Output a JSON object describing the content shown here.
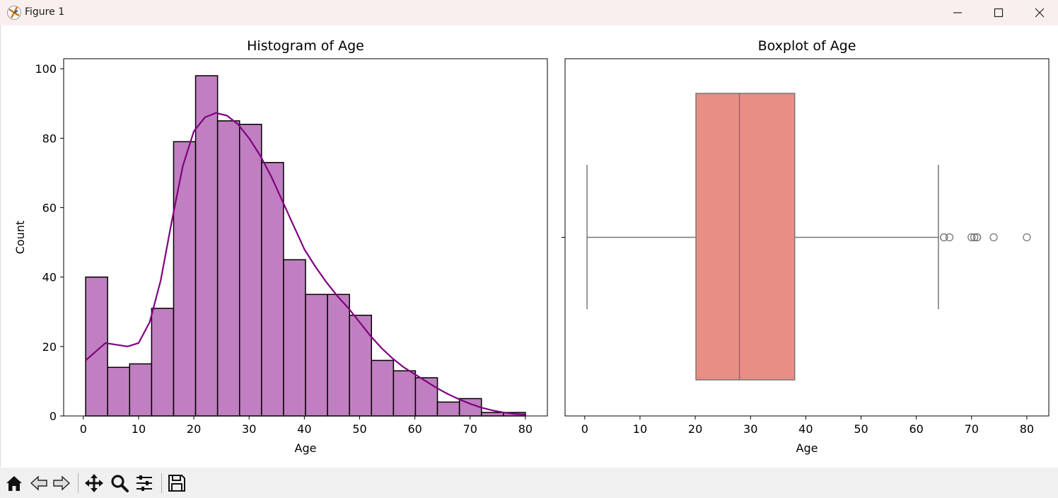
{
  "window": {
    "title": "Figure 1"
  },
  "toolbar": {
    "icons": [
      "home-icon",
      "back-icon",
      "forward-icon",
      "pan-icon",
      "zoom-icon",
      "configure-icon",
      "save-icon"
    ]
  },
  "colors": {
    "hist_fill": "#c07fc0",
    "hist_edge": "#000000",
    "kde_line": "#800080",
    "box_fill": "#e88e84",
    "box_edge": "#777777"
  },
  "chart_data": [
    {
      "type": "bar",
      "title": "Histogram of Age",
      "xlabel": "Age",
      "ylabel": "Count",
      "bin_edges": [
        0.42,
        4.399,
        8.378,
        12.357,
        16.336,
        20.315,
        24.294,
        28.273,
        32.252,
        36.231,
        40.21,
        44.189,
        48.168,
        52.147,
        56.126,
        60.105,
        64.084,
        68.063,
        72.042,
        76.021,
        80.0
      ],
      "counts": [
        40,
        14,
        15,
        31,
        79,
        98,
        85,
        84,
        73,
        45,
        35,
        35,
        29,
        16,
        13,
        11,
        4,
        5,
        1,
        1
      ],
      "kde": {
        "x": [
          0.42,
          4,
          8,
          10,
          12,
          14,
          16,
          18,
          20,
          22,
          24,
          26,
          28,
          30,
          32,
          34,
          36,
          38,
          40,
          42,
          44,
          46,
          48,
          50,
          52,
          54,
          56,
          58,
          60,
          62,
          64,
          66,
          68,
          70,
          72,
          74,
          76,
          78,
          80
        ],
        "y": [
          16,
          21,
          20,
          21,
          27,
          39,
          56,
          72,
          82,
          86,
          87.3,
          86.5,
          84,
          80,
          75,
          69,
          62,
          55,
          48,
          43,
          38.5,
          34.5,
          31,
          27,
          23,
          19.5,
          16.5,
          14,
          12,
          10,
          8,
          6.3,
          4.8,
          3.5,
          2.4,
          1.6,
          1.0,
          0.6,
          0.4
        ]
      },
      "xlim": [
        -3.56,
        83.98
      ],
      "ylim": [
        0,
        102.9
      ],
      "xticks": [
        0,
        10,
        20,
        30,
        40,
        50,
        60,
        70,
        80
      ],
      "yticks": [
        0,
        20,
        40,
        60,
        80,
        100
      ],
      "grid": false
    },
    {
      "type": "boxplot",
      "title": "Boxplot of Age",
      "xlabel": "Age",
      "orientation": "horizontal",
      "whisker_low": 0.42,
      "q1": 20.125,
      "median": 28,
      "q3": 38,
      "whisker_high": 64,
      "outliers": [
        65,
        65,
        66,
        70,
        70.5,
        71,
        71,
        74,
        80
      ],
      "xlim": [
        -3.56,
        83.98
      ],
      "xticks": [
        0,
        10,
        20,
        30,
        40,
        50,
        60,
        70,
        80
      ],
      "grid": false
    }
  ]
}
